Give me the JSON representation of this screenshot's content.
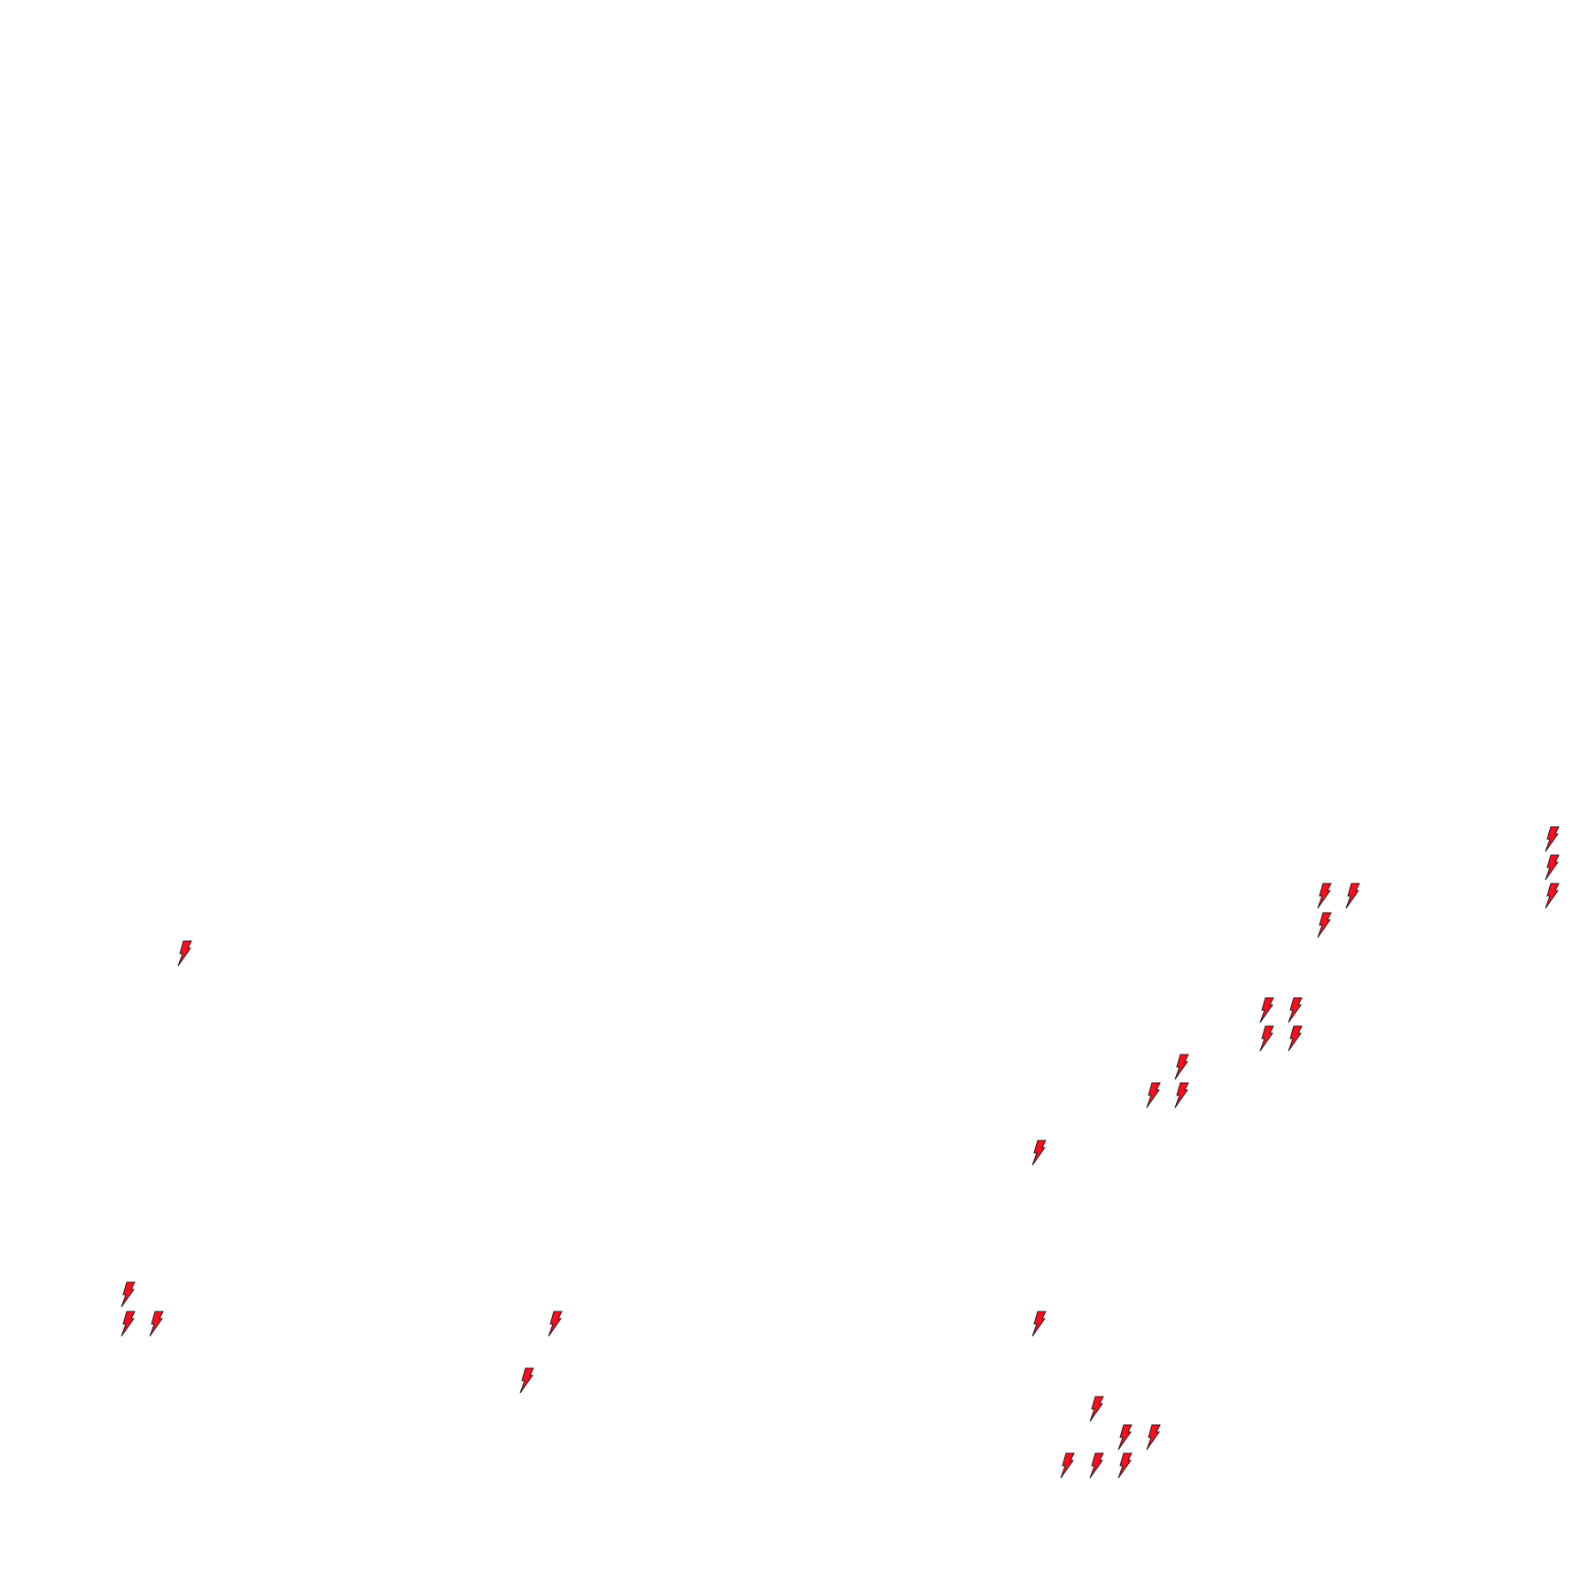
{
  "map": {
    "background": "#ffffff",
    "marker_icon": "lightning-bolt-icon",
    "marker_fill": "#ff0d1f",
    "marker_stroke": "#1a1a1a"
  }
}
